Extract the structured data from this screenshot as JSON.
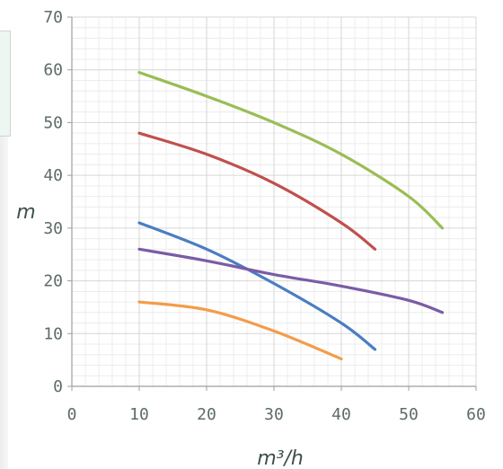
{
  "chart_data": {
    "type": "line",
    "xlabel": "m³/h",
    "ylabel": "m",
    "xlim": [
      0,
      60
    ],
    "ylim": [
      0,
      70
    ],
    "x_ticks": [
      "0",
      "10",
      "20",
      "30",
      "40",
      "50",
      "60"
    ],
    "y_ticks": [
      "0",
      "10",
      "20",
      "30",
      "40",
      "50",
      "60",
      "70"
    ],
    "grid": true,
    "series": [
      {
        "color": "#9abd55",
        "x": [
          10,
          20,
          30,
          40,
          50,
          55
        ],
        "y": [
          59.5,
          55,
          50,
          44,
          36,
          30
        ]
      },
      {
        "color": "#c0504d",
        "x": [
          10,
          20,
          30,
          40,
          45
        ],
        "y": [
          48,
          44,
          38.5,
          31,
          26
        ]
      },
      {
        "color": "#4a7ec2",
        "x": [
          10,
          20,
          30,
          40,
          45
        ],
        "y": [
          31,
          26,
          19.5,
          12,
          7
        ]
      },
      {
        "color": "#7a5ca5",
        "x": [
          10,
          20,
          30,
          40,
          50,
          55
        ],
        "y": [
          26,
          23.8,
          21.2,
          19,
          16.3,
          14
        ]
      },
      {
        "color": "#f39c4a",
        "x": [
          10,
          20,
          30,
          40
        ],
        "y": [
          16,
          14.5,
          10.5,
          5.2
        ]
      }
    ]
  }
}
